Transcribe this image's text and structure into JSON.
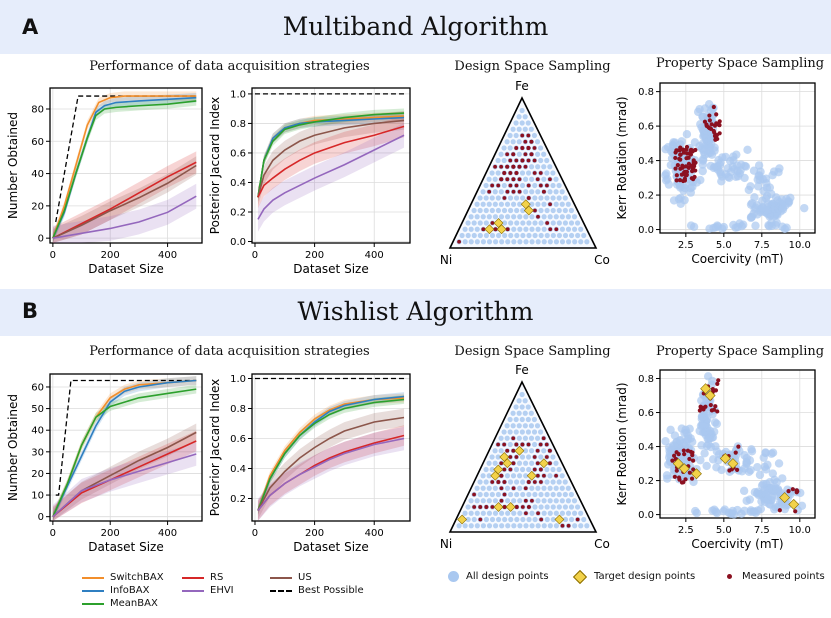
{
  "section_a": {
    "letter": "A",
    "title": "Multiband Algorithm"
  },
  "section_b": {
    "letter": "B",
    "title": "Wishlist Algorithm"
  },
  "subtitles": {
    "performance": "Performance of data acquisition strategies",
    "design": "Design Space Sampling",
    "property": "Property Space Sampling"
  },
  "ternary_labels": {
    "top": "Fe",
    "left": "Ni",
    "right": "Co"
  },
  "colors": {
    "SwitchBAX": "#f28e2b",
    "InfoBAX": "#2f7fc1",
    "MeanBAX": "#2ca02c",
    "RS": "#d62728",
    "EHVI": "#9467bd",
    "US": "#8c564b",
    "Best Possible": "#000000",
    "all_points": "#a9c8f0",
    "target": "#f2d24a",
    "measured": "#8b1020"
  },
  "legend_strategies": [
    {
      "name": "SwitchBAX",
      "key": "SwitchBAX",
      "dash": false
    },
    {
      "name": "InfoBAX",
      "key": "InfoBAX",
      "dash": false
    },
    {
      "name": "MeanBAX",
      "key": "MeanBAX",
      "dash": false
    },
    {
      "name": "RS",
      "key": "RS",
      "dash": false
    },
    {
      "name": "EHVI",
      "key": "EHVI",
      "dash": false
    },
    {
      "name": "Best Possible",
      "key": "Best Possible",
      "dash": true
    },
    {
      "name": "US",
      "key": "US",
      "dash": false
    }
  ],
  "legend_points": [
    {
      "name": "All design points",
      "marker": "circle"
    },
    {
      "name": "Target design points",
      "marker": "diamond"
    },
    {
      "name": "Measured points",
      "marker": "dot"
    }
  ],
  "chart_data": [
    {
      "id": "a_number",
      "type": "line",
      "xlabel": "Dataset Size",
      "ylabel": "Number Obtained",
      "xlim": [
        -10,
        520
      ],
      "ylim": [
        -3,
        93
      ],
      "xticks": [
        0,
        200,
        400
      ],
      "yticks": [
        0,
        20,
        40,
        60,
        80
      ],
      "series": [
        {
          "name": "Best Possible",
          "x": [
            10,
            88,
            500
          ],
          "y": [
            10,
            88,
            88
          ]
        },
        {
          "name": "SwitchBAX",
          "x": [
            0,
            40,
            80,
            120,
            160,
            200,
            250,
            300,
            400,
            500
          ],
          "y": [
            0,
            20,
            45,
            70,
            84,
            87,
            88,
            88,
            88,
            88
          ]
        },
        {
          "name": "InfoBAX",
          "x": [
            0,
            40,
            80,
            120,
            150,
            180,
            220,
            300,
            400,
            500
          ],
          "y": [
            0,
            16,
            40,
            62,
            78,
            82,
            84,
            85,
            86,
            87
          ]
        },
        {
          "name": "MeanBAX",
          "x": [
            0,
            40,
            80,
            120,
            150,
            180,
            220,
            300,
            400,
            500
          ],
          "y": [
            0,
            17,
            40,
            62,
            76,
            80,
            81,
            82,
            83,
            85
          ]
        },
        {
          "name": "RS",
          "x": [
            0,
            100,
            200,
            300,
            400,
            500
          ],
          "y": [
            0,
            9,
            18,
            28,
            38,
            47
          ]
        },
        {
          "name": "US",
          "x": [
            0,
            100,
            200,
            300,
            400,
            500
          ],
          "y": [
            0,
            8,
            17,
            25,
            34,
            45
          ]
        },
        {
          "name": "EHVI",
          "x": [
            0,
            100,
            200,
            300,
            400,
            500
          ],
          "y": [
            0,
            3,
            6,
            10,
            16,
            26
          ]
        }
      ]
    },
    {
      "id": "a_jaccard",
      "type": "line",
      "xlabel": "Dataset Size",
      "ylabel": "Posterior Jaccard Index",
      "xlim": [
        -10,
        520
      ],
      "ylim": [
        -0.01,
        1.04
      ],
      "xticks": [
        0,
        200,
        400
      ],
      "yticks": [
        0.0,
        0.2,
        0.4,
        0.6,
        0.8,
        1.0
      ],
      "series": [
        {
          "name": "Best Possible",
          "x": [
            0,
            500
          ],
          "y": [
            1.0,
            1.0
          ]
        },
        {
          "name": "SwitchBAX",
          "x": [
            10,
            30,
            60,
            100,
            150,
            200,
            300,
            400,
            500
          ],
          "y": [
            0.3,
            0.55,
            0.7,
            0.77,
            0.8,
            0.82,
            0.83,
            0.84,
            0.85
          ]
        },
        {
          "name": "InfoBAX",
          "x": [
            10,
            30,
            60,
            100,
            150,
            200,
            300,
            400,
            500
          ],
          "y": [
            0.3,
            0.55,
            0.7,
            0.77,
            0.8,
            0.81,
            0.82,
            0.83,
            0.84
          ]
        },
        {
          "name": "MeanBAX",
          "x": [
            10,
            30,
            60,
            100,
            150,
            200,
            300,
            400,
            500
          ],
          "y": [
            0.3,
            0.55,
            0.68,
            0.76,
            0.79,
            0.81,
            0.84,
            0.86,
            0.87
          ]
        },
        {
          "name": "US",
          "x": [
            10,
            30,
            60,
            100,
            150,
            200,
            300,
            400,
            500
          ],
          "y": [
            0.3,
            0.45,
            0.55,
            0.62,
            0.68,
            0.72,
            0.77,
            0.8,
            0.82
          ]
        },
        {
          "name": "RS",
          "x": [
            10,
            30,
            60,
            100,
            150,
            200,
            300,
            400,
            500
          ],
          "y": [
            0.3,
            0.38,
            0.43,
            0.49,
            0.55,
            0.6,
            0.67,
            0.72,
            0.78
          ]
        },
        {
          "name": "EHVI",
          "x": [
            10,
            30,
            60,
            100,
            150,
            200,
            300,
            400,
            500
          ],
          "y": [
            0.15,
            0.22,
            0.28,
            0.33,
            0.38,
            0.43,
            0.52,
            0.62,
            0.72
          ]
        }
      ]
    },
    {
      "id": "b_number",
      "type": "line",
      "xlabel": "Dataset Size",
      "ylabel": "Number Obtained",
      "xlim": [
        -10,
        520
      ],
      "ylim": [
        -2,
        66
      ],
      "xticks": [
        0,
        200,
        400
      ],
      "yticks": [
        0,
        10,
        20,
        30,
        40,
        50,
        60
      ],
      "series": [
        {
          "name": "Best Possible",
          "x": [
            10,
            20,
            63,
            500
          ],
          "y": [
            10,
            10,
            63,
            63
          ]
        },
        {
          "name": "SwitchBAX",
          "x": [
            0,
            50,
            100,
            150,
            200,
            250,
            300,
            400,
            500
          ],
          "y": [
            0,
            15,
            33,
            46,
            55,
            59,
            61,
            62,
            63
          ]
        },
        {
          "name": "InfoBAX",
          "x": [
            0,
            50,
            100,
            150,
            200,
            250,
            300,
            400,
            500
          ],
          "y": [
            0,
            14,
            28,
            42,
            53,
            58,
            60,
            62,
            63
          ]
        },
        {
          "name": "MeanBAX",
          "x": [
            0,
            50,
            100,
            150,
            200,
            250,
            300,
            400,
            500
          ],
          "y": [
            0,
            15,
            33,
            46,
            51,
            53,
            55,
            57,
            59
          ]
        },
        {
          "name": "US",
          "x": [
            0,
            100,
            200,
            300,
            400,
            500
          ],
          "y": [
            0,
            12,
            19,
            26,
            32,
            39
          ]
        },
        {
          "name": "RS",
          "x": [
            0,
            100,
            200,
            300,
            400,
            500
          ],
          "y": [
            0,
            11,
            17,
            23,
            29,
            35
          ]
        },
        {
          "name": "EHVI",
          "x": [
            0,
            100,
            200,
            300,
            400,
            500
          ],
          "y": [
            0,
            12,
            17,
            21,
            25,
            29
          ]
        }
      ]
    },
    {
      "id": "b_jaccard",
      "type": "line",
      "xlabel": "Dataset Size",
      "ylabel": "Posterior Jaccard Index",
      "xlim": [
        -10,
        520
      ],
      "ylim": [
        0.05,
        1.03
      ],
      "xticks": [
        0,
        200,
        400
      ],
      "yticks": [
        0.2,
        0.4,
        0.6,
        0.8,
        1.0
      ],
      "series": [
        {
          "name": "Best Possible",
          "x": [
            0,
            500
          ],
          "y": [
            1.0,
            1.0
          ]
        },
        {
          "name": "SwitchBAX",
          "x": [
            10,
            50,
            100,
            150,
            200,
            250,
            300,
            400,
            500
          ],
          "y": [
            0.12,
            0.35,
            0.52,
            0.64,
            0.73,
            0.79,
            0.83,
            0.86,
            0.87
          ]
        },
        {
          "name": "InfoBAX",
          "x": [
            10,
            50,
            100,
            150,
            200,
            250,
            300,
            400,
            500
          ],
          "y": [
            0.12,
            0.33,
            0.5,
            0.62,
            0.71,
            0.78,
            0.82,
            0.86,
            0.88
          ]
        },
        {
          "name": "MeanBAX",
          "x": [
            10,
            50,
            100,
            150,
            200,
            250,
            300,
            400,
            500
          ],
          "y": [
            0.12,
            0.33,
            0.5,
            0.62,
            0.7,
            0.76,
            0.8,
            0.84,
            0.86
          ]
        },
        {
          "name": "US",
          "x": [
            10,
            50,
            100,
            150,
            200,
            250,
            300,
            400,
            500
          ],
          "y": [
            0.12,
            0.27,
            0.38,
            0.47,
            0.54,
            0.6,
            0.65,
            0.71,
            0.74
          ]
        },
        {
          "name": "RS",
          "x": [
            10,
            50,
            100,
            150,
            200,
            250,
            300,
            400,
            500
          ],
          "y": [
            0.12,
            0.22,
            0.3,
            0.36,
            0.42,
            0.47,
            0.51,
            0.57,
            0.62
          ]
        },
        {
          "name": "EHVI",
          "x": [
            10,
            50,
            100,
            150,
            200,
            250,
            300,
            400,
            500
          ],
          "y": [
            0.12,
            0.22,
            0.3,
            0.36,
            0.41,
            0.46,
            0.5,
            0.56,
            0.6
          ]
        }
      ]
    },
    {
      "id": "a_property",
      "type": "scatter",
      "xlabel": "Coercivity (mT)",
      "ylabel": "Kerr Rotation (mrad)",
      "xlim": [
        0.8,
        11.0
      ],
      "ylim": [
        -0.02,
        0.85
      ],
      "xticks": [
        2.5,
        5.0,
        7.5,
        10.0
      ],
      "yticks": [
        0.0,
        0.2,
        0.4,
        0.6,
        0.8
      ],
      "measured_clusters": [
        {
          "x": 2.5,
          "y": 0.38,
          "count": 60
        },
        {
          "x": 4.1,
          "y": 0.62,
          "count": 25
        }
      ]
    },
    {
      "id": "b_property",
      "type": "scatter",
      "xlabel": "Coercivity (mT)",
      "ylabel": "Kerr Rotation (mrad)",
      "xlim": [
        0.8,
        11.0
      ],
      "ylim": [
        -0.02,
        0.85
      ],
      "xticks": [
        2.5,
        5.0,
        7.5,
        10.0
      ],
      "yticks": [
        0.0,
        0.2,
        0.4,
        0.6,
        0.8
      ],
      "measured_clusters": [
        {
          "x": 2.3,
          "y": 0.28,
          "count": 30
        },
        {
          "x": 4.0,
          "y": 0.7,
          "count": 20
        },
        {
          "x": 5.3,
          "y": 0.32,
          "count": 8
        },
        {
          "x": 9.2,
          "y": 0.1,
          "count": 8
        }
      ]
    }
  ]
}
